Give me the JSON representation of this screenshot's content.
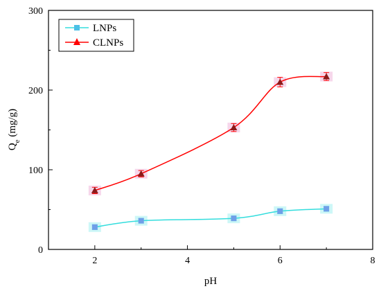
{
  "chart_data": {
    "type": "line",
    "xlabel": "pH",
    "ylabel": "Q",
    "ylabel_sub": "e",
    "ylabel_unit": " (mg/g)",
    "xlim": [
      1,
      8
    ],
    "ylim": [
      0,
      300
    ],
    "xticks": [
      2,
      4,
      6,
      8
    ],
    "yticks": [
      0,
      100,
      200,
      300
    ],
    "grid": false,
    "legend_position": "top-left",
    "series": [
      {
        "name": "LNPs",
        "marker": "square",
        "color": "#33DDDD",
        "marker_color": "#6F9FE8",
        "x": [
          2,
          3,
          5,
          6,
          7
        ],
        "y": [
          28,
          36,
          39,
          48,
          51
        ],
        "err": [
          3,
          3,
          3,
          3,
          3
        ]
      },
      {
        "name": "CLNPs",
        "marker": "triangle",
        "color": "#FF0000",
        "marker_color": "#8B1A1A",
        "x": [
          2,
          3,
          5,
          6,
          7
        ],
        "y": [
          74,
          95,
          153,
          210,
          217
        ],
        "err": [
          4,
          4,
          5,
          6,
          5
        ]
      }
    ]
  }
}
